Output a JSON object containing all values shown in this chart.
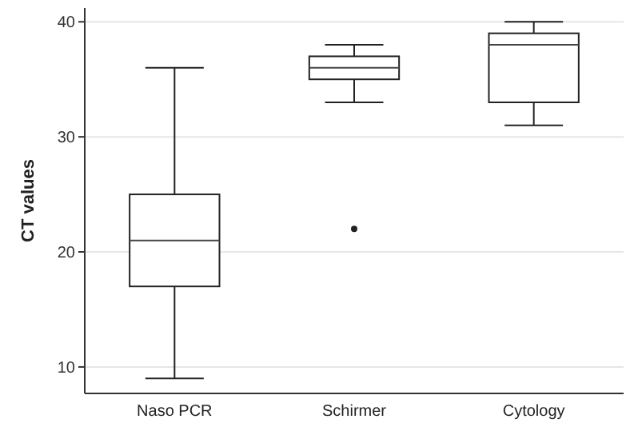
{
  "chart_data": {
    "type": "box",
    "ylabel": "CT values",
    "categories": [
      "Naso PCR",
      "Schirmer",
      "Cytology"
    ],
    "boxes": [
      {
        "low": 9,
        "q1": 17,
        "median": 21,
        "q3": 25,
        "high": 36
      },
      {
        "low": 33,
        "q1": 35,
        "median": 36,
        "q3": 37,
        "high": 38,
        "outliers": [
          22
        ]
      },
      {
        "low": 31,
        "q1": 33,
        "median": 38,
        "q3": 39,
        "high": 40
      }
    ],
    "ylim": [
      7.7,
      41.2
    ],
    "yticks": [
      10,
      20,
      30,
      40
    ],
    "grid": "y"
  }
}
